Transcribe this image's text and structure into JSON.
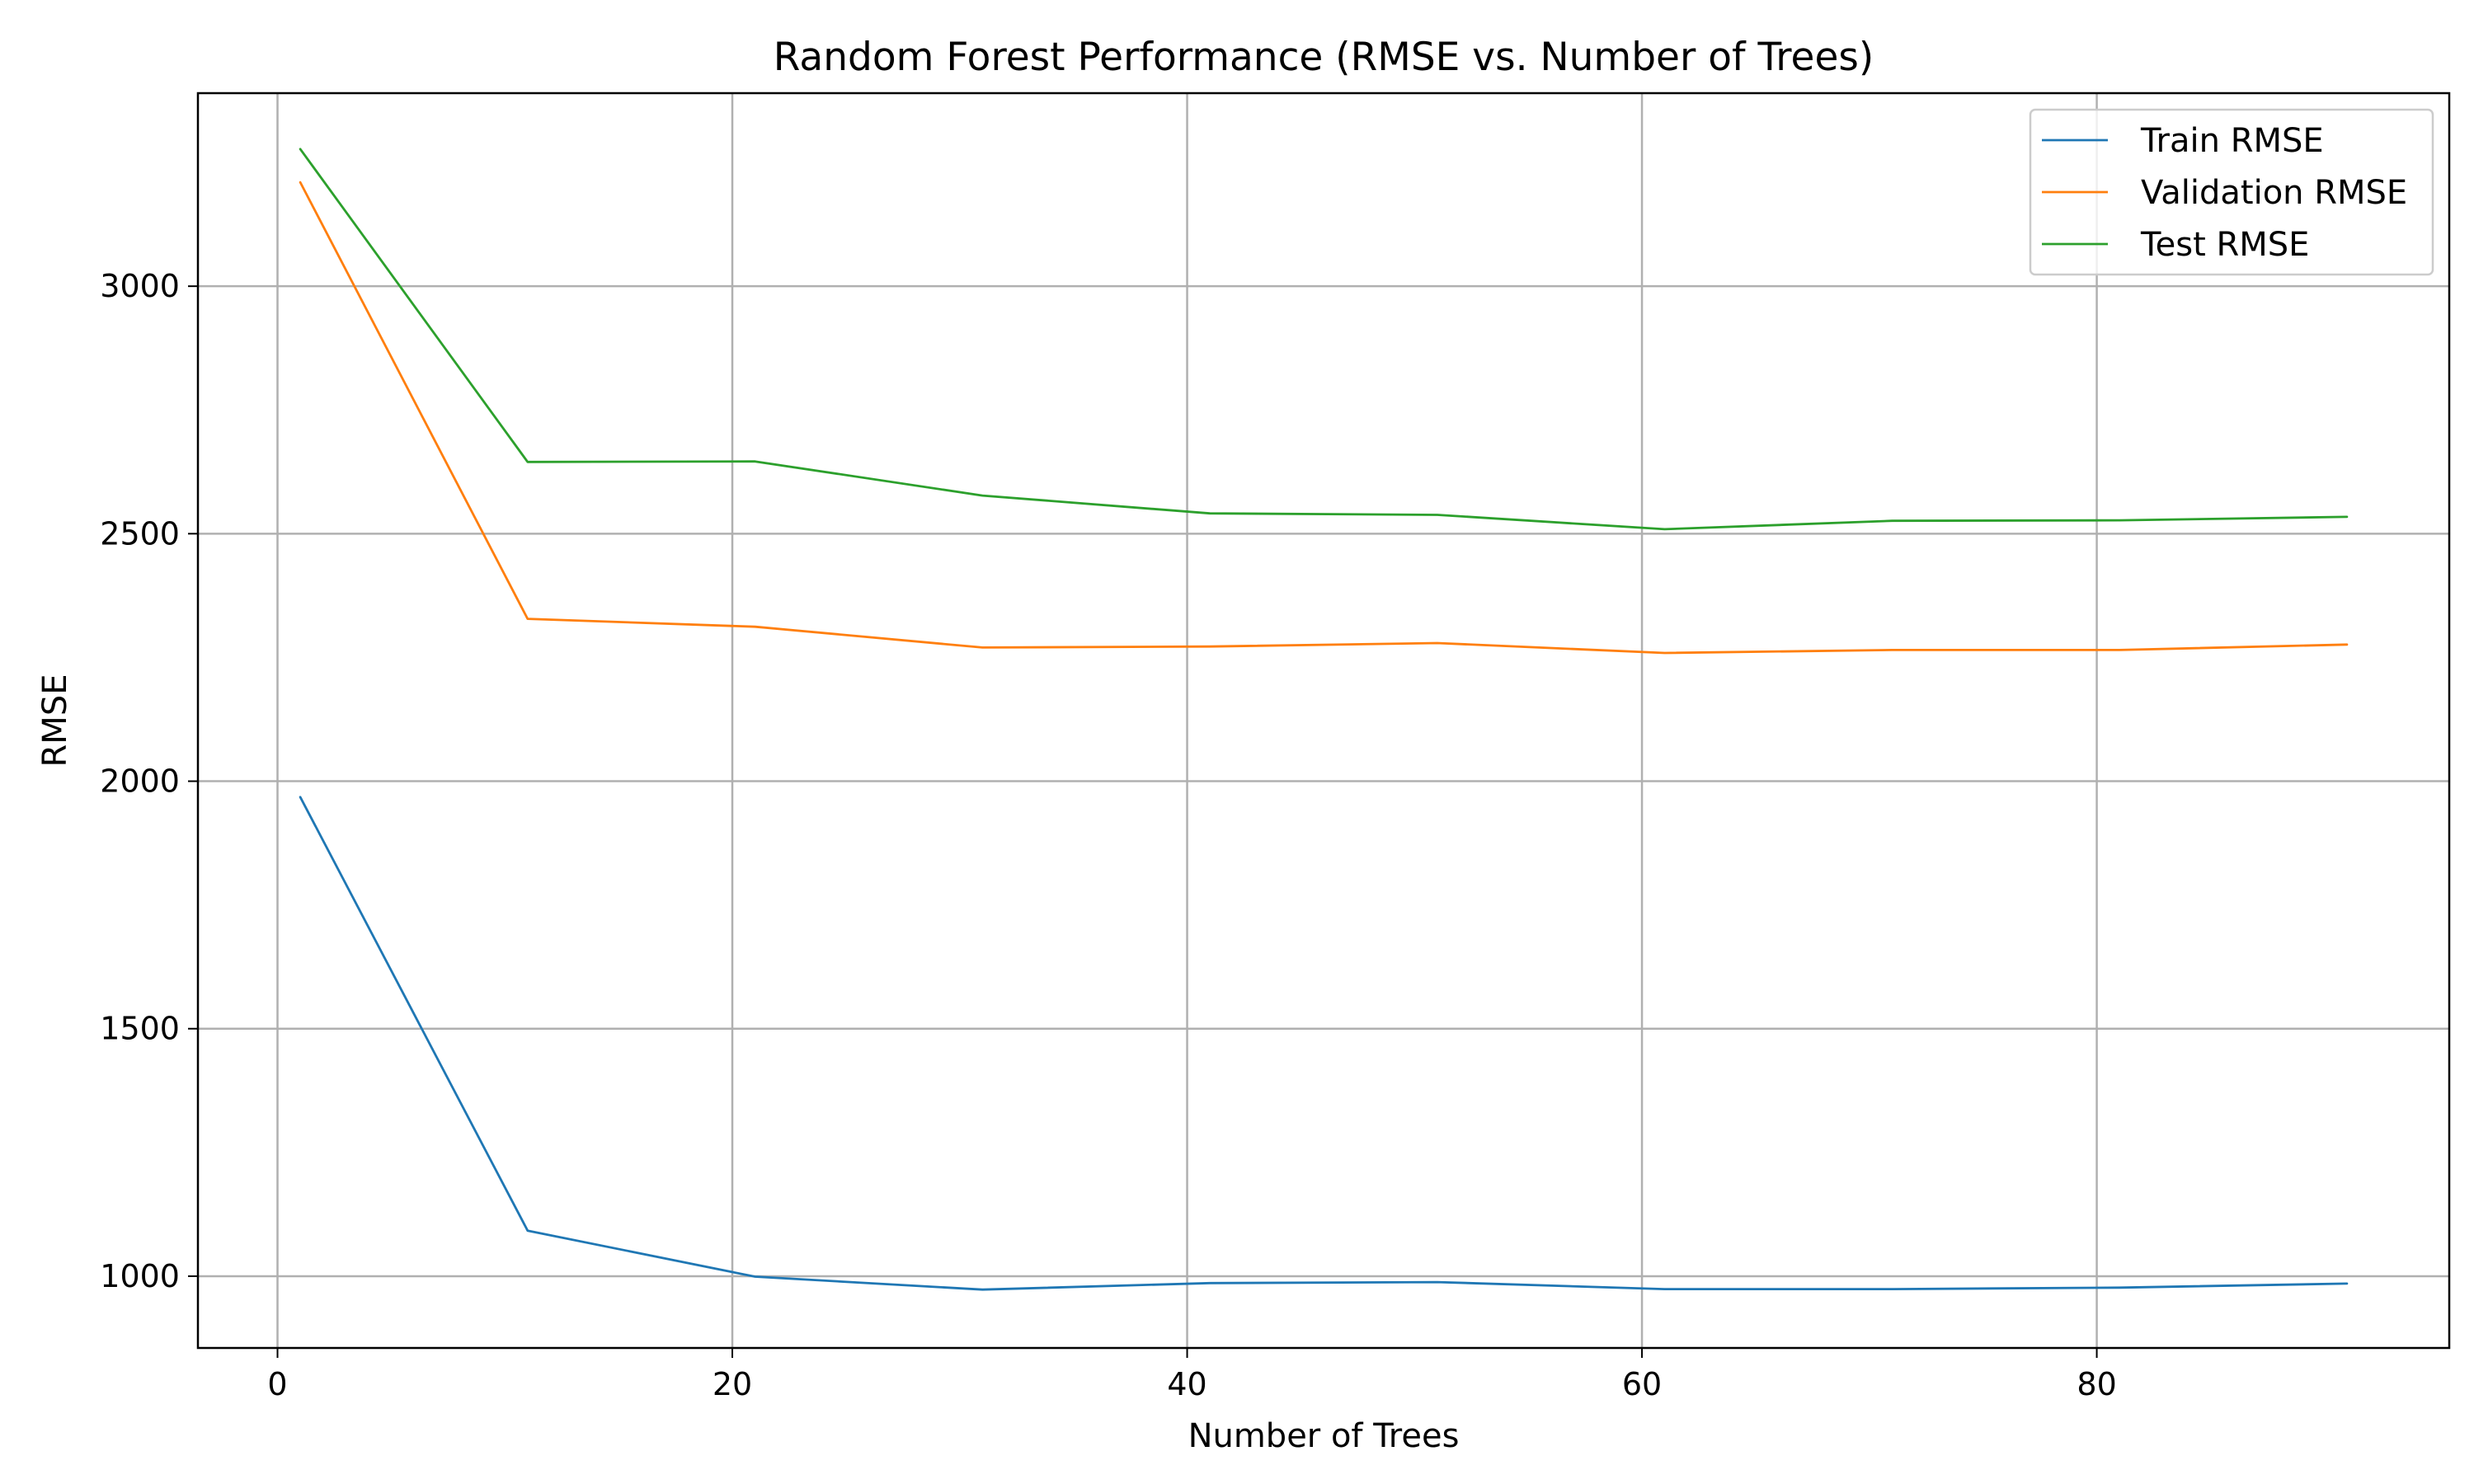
{
  "chart_data": {
    "type": "line",
    "title": "Random Forest Performance (RMSE vs. Number of Trees)",
    "xlabel": "Number of Trees",
    "ylabel": "RMSE",
    "x": [
      1,
      11,
      21,
      31,
      41,
      51,
      61,
      71,
      81,
      91
    ],
    "xlim": [
      -3.5,
      95.5
    ],
    "ylim": [
      855,
      3390
    ],
    "xticks": [
      0,
      20,
      40,
      60,
      80
    ],
    "xtick_labels": [
      "0",
      "20",
      "40",
      "60",
      "80"
    ],
    "yticks": [
      1000,
      1500,
      2000,
      2500,
      3000
    ],
    "ytick_labels": [
      "1000",
      "1500",
      "2000",
      "2500",
      "3000"
    ],
    "grid": true,
    "legend_position": "top-right",
    "series": [
      {
        "name": "Train RMSE",
        "color": "#1f77b4",
        "values": [
          1968,
          1092,
          999,
          973,
          986,
          988,
          974,
          974,
          977,
          985
        ]
      },
      {
        "name": "Validation RMSE",
        "color": "#ff7f0e",
        "values": [
          3210,
          2328,
          2312,
          2270,
          2272,
          2279,
          2259,
          2265,
          2265,
          2276
        ]
      },
      {
        "name": "Test RMSE",
        "color": "#2ca02c",
        "values": [
          3277,
          2645,
          2646,
          2577,
          2541,
          2538,
          2509,
          2526,
          2527,
          2534
        ]
      }
    ]
  }
}
